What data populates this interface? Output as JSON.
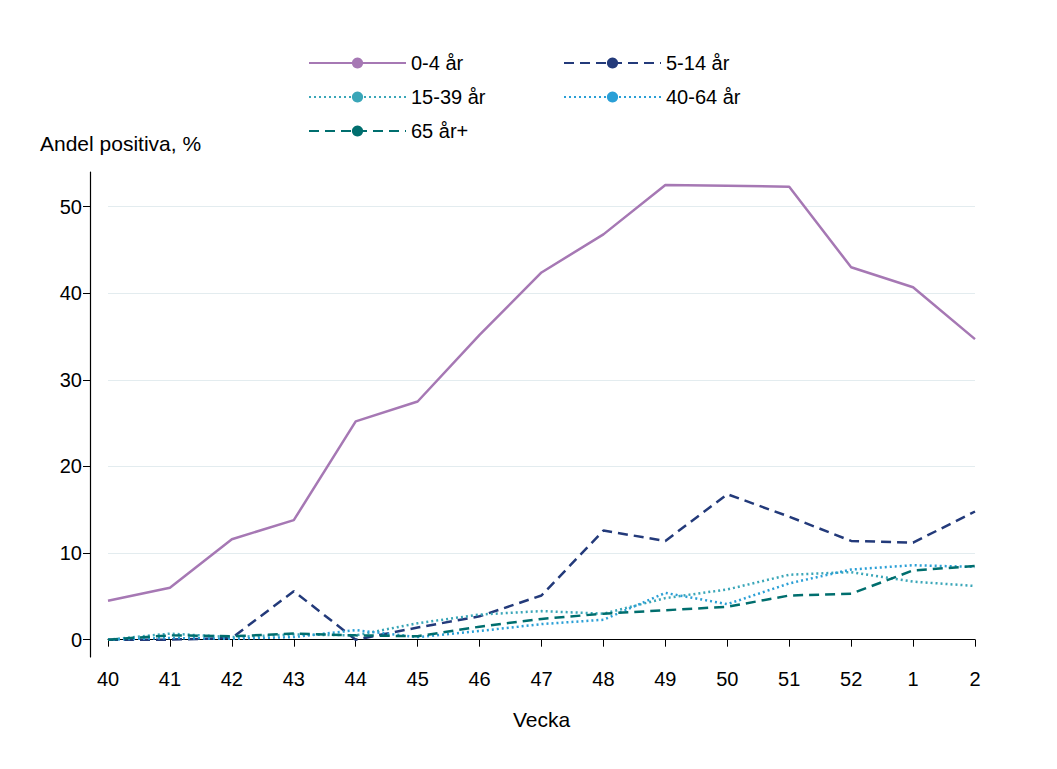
{
  "chart_data": {
    "type": "line",
    "y_label": "Andel positiva, %",
    "x_label": "Vecka",
    "categories": [
      "40",
      "41",
      "42",
      "43",
      "44",
      "45",
      "46",
      "47",
      "48",
      "49",
      "50",
      "51",
      "52",
      "1",
      "2"
    ],
    "series": [
      {
        "name": "0-4 år",
        "color": "#a678b4",
        "line_style": "solid",
        "values": [
          4.5,
          6.0,
          11.6,
          13.8,
          25.2,
          27.5,
          35.2,
          42.4,
          46.8,
          52.5,
          52.4,
          52.3,
          43.0,
          40.7,
          34.7
        ]
      },
      {
        "name": "5-14 år",
        "color": "#233a7a",
        "line_style": "dashed",
        "values": [
          0.0,
          0.0,
          0.2,
          5.6,
          0.0,
          1.4,
          2.7,
          5.1,
          12.6,
          11.4,
          16.8,
          14.2,
          11.4,
          11.2,
          14.8
        ]
      },
      {
        "name": "15-39 år",
        "color": "#3aa6b8",
        "line_style": "dotted",
        "values": [
          0.0,
          0.7,
          0.3,
          0.6,
          0.5,
          1.9,
          2.9,
          3.3,
          3.0,
          4.8,
          5.8,
          7.5,
          7.8,
          6.7,
          6.2
        ]
      },
      {
        "name": "40-64 år",
        "color": "#2a9fd6",
        "line_style": "dotted",
        "values": [
          0.0,
          0.2,
          0.1,
          0.3,
          1.1,
          0.3,
          1.0,
          1.8,
          2.3,
          5.4,
          4.1,
          6.5,
          8.1,
          8.6,
          8.4
        ]
      },
      {
        "name": "65 år+",
        "color": "#006e6e",
        "line_style": "dashed",
        "values": [
          0.0,
          0.5,
          0.4,
          0.7,
          0.5,
          0.4,
          1.5,
          2.4,
          3.0,
          3.4,
          3.8,
          5.1,
          5.3,
          8.0,
          8.5
        ]
      }
    ],
    "ylim": [
      -2,
      54
    ],
    "yticks": [
      0,
      10,
      20,
      30,
      40,
      50
    ],
    "grid": true,
    "legend": "top"
  }
}
